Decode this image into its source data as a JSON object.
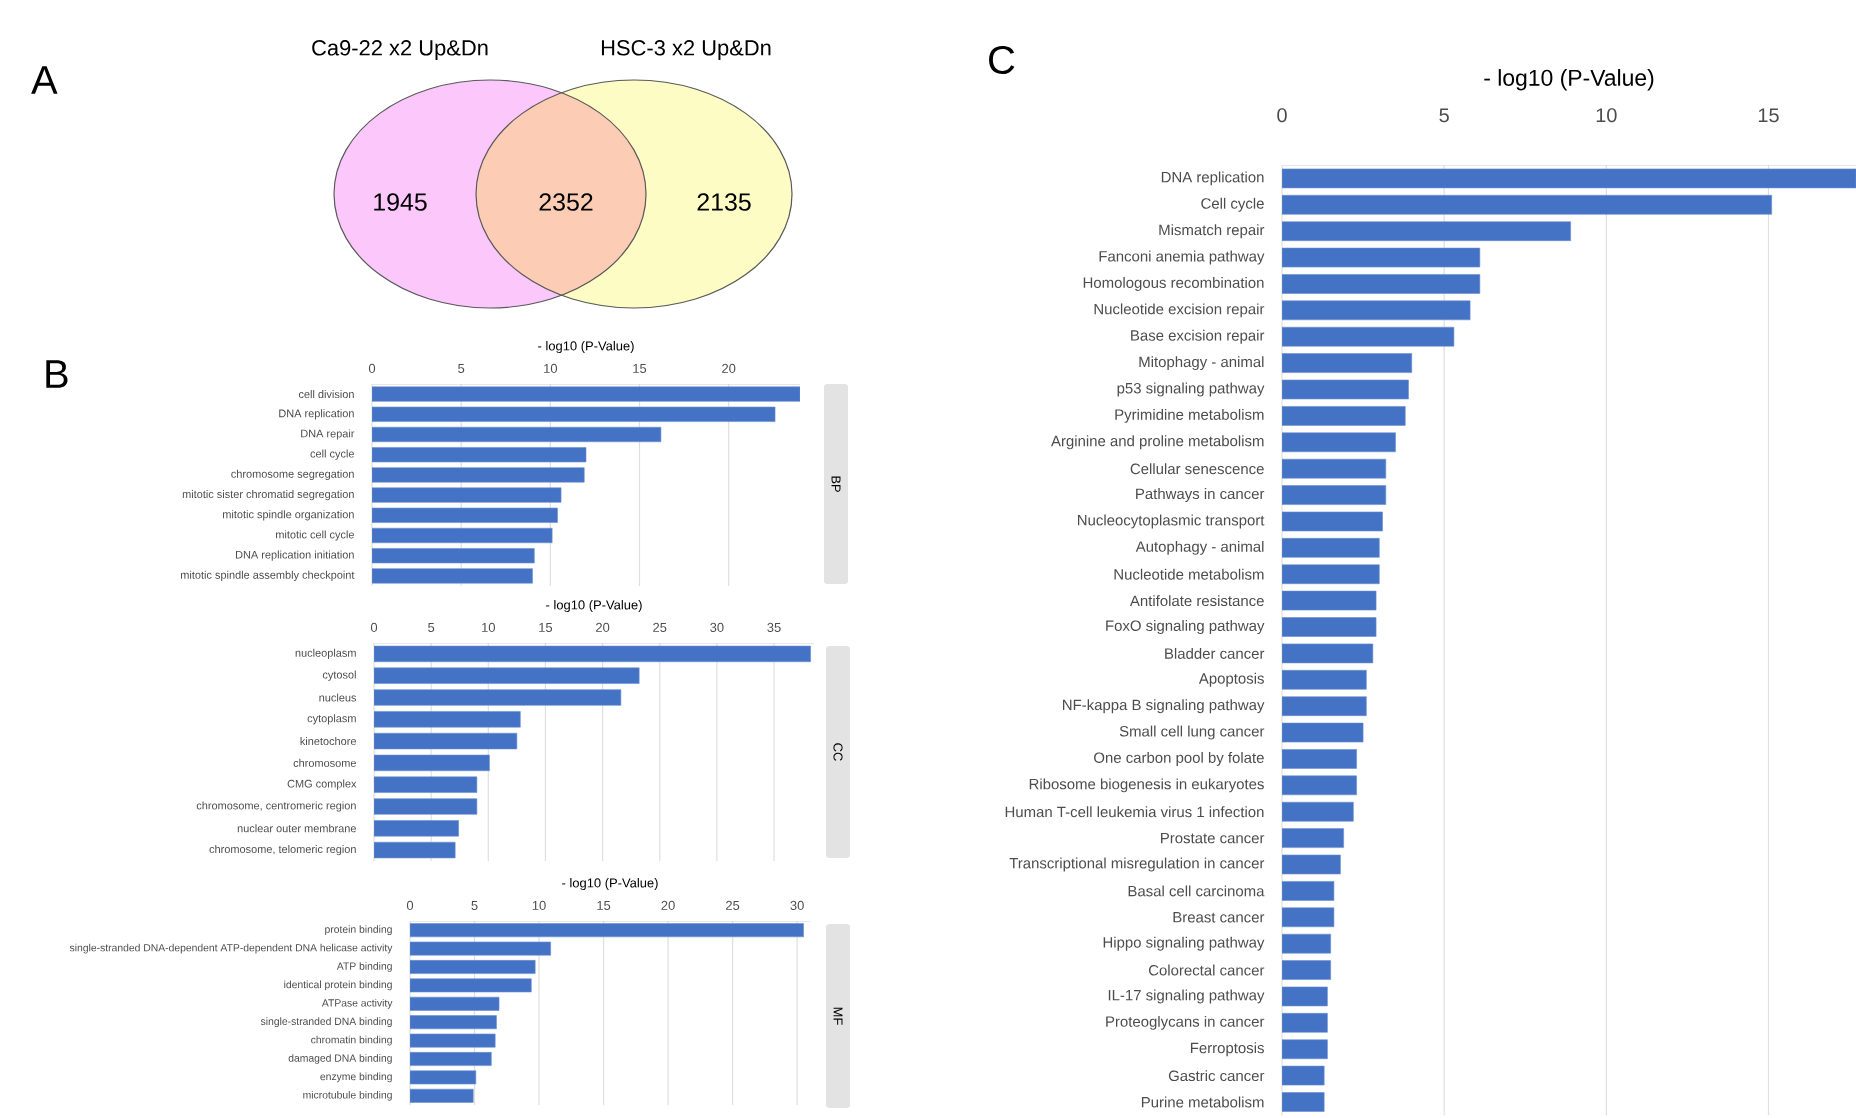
{
  "chart_data": [
    {
      "type": "other",
      "title": "A",
      "annotations": [
        "Ca9-22 x2 Up&Dn",
        "HSC-3 x2 Up&Dn"
      ],
      "categories": [
        null,
        null,
        null
      ],
      "values": [
        1945,
        2352,
        2135
      ],
      "colors": [
        "#fcc8fc",
        "#fcccb4",
        "#fcfcc4"
      ],
      "data_labels": true
    },
    {
      "type": "bar",
      "orientation": "horizontal",
      "title": "B",
      "xlabel": "- log10 (P-Value)",
      "annotations": [
        "BP"
      ],
      "categories": [
        "cell division",
        "DNA replication",
        "DNA repair",
        "cell cycle",
        "chromosome segregation",
        "mitotic sister chromatid segregation",
        "mitotic spindle organization",
        "mitotic cell cycle",
        "DNA replication initiation",
        "mitotic spindle assembly checkpoint"
      ],
      "values": [
        24.0,
        22.6,
        16.2,
        12.0,
        11.9,
        10.6,
        10.4,
        10.1,
        9.1,
        9.0
      ],
      "color": "#4472c4",
      "xlim": [
        0,
        24
      ],
      "xticks": [
        0,
        5,
        10,
        15,
        20
      ],
      "grid": "x"
    },
    {
      "type": "bar",
      "orientation": "horizontal",
      "xlabel": "- log10 (P-Value)",
      "annotations": [
        "CC"
      ],
      "categories": [
        "nucleoplasm",
        "cytosol",
        "nucleus",
        "cytoplasm",
        "kinetochore",
        "chromosome",
        "CMG complex",
        "chromosome, centromeric region",
        "nuclear outer membrane",
        "chromosome, telomeric region"
      ],
      "values": [
        38.2,
        23.2,
        21.6,
        12.8,
        12.5,
        10.1,
        9.0,
        9.0,
        7.4,
        7.1
      ],
      "color": "#4472c4",
      "xlim": [
        0,
        38.5
      ],
      "xticks": [
        0,
        5,
        10,
        15,
        20,
        25,
        30,
        35
      ],
      "grid": "x"
    },
    {
      "type": "bar",
      "orientation": "horizontal",
      "xlabel": "- log10 (P-Value)",
      "annotations": [
        "MF"
      ],
      "categories": [
        "protein binding",
        "single-stranded DNA-dependent ATP-dependent DNA helicase activity",
        "ATP binding",
        "identical protein binding",
        "ATPase activity",
        "single-stranded DNA binding",
        "chromatin binding",
        "damaged DNA binding",
        "enzyme binding",
        "microtubule binding"
      ],
      "values": [
        30.5,
        10.9,
        9.7,
        9.4,
        6.9,
        6.7,
        6.6,
        6.3,
        5.1,
        4.9
      ],
      "color": "#4472c4",
      "xlim": [
        0,
        31
      ],
      "xticks": [
        0,
        5,
        10,
        15,
        20,
        25,
        30
      ],
      "grid": "x"
    },
    {
      "type": "bar",
      "orientation": "horizontal",
      "title": "C",
      "xlabel": "- log10 (P-Value)",
      "categories": [
        "DNA replication",
        "Cell cycle",
        "Mismatch repair",
        "Fanconi anemia pathway",
        "Homologous recombination",
        "Nucleotide excision repair",
        "Base excision repair",
        "Mitophagy - animal",
        "p53 signaling pathway",
        "Pyrimidine metabolism",
        "Arginine and proline metabolism",
        "Cellular senescence",
        "Pathways in cancer",
        "Nucleocytoplasmic transport",
        "Autophagy - animal",
        "Nucleotide metabolism",
        "Antifolate resistance",
        "FoxO signaling pathway",
        "Bladder cancer",
        "Apoptosis",
        "NF-kappa B signaling pathway",
        "Small cell lung cancer",
        "One carbon pool by folate",
        "Ribosome biogenesis in eukaryotes",
        "Human T-cell leukemia virus 1 infection",
        "Prostate cancer",
        "Transcriptional misregulation in cancer",
        "Basal cell carcinoma",
        "Breast cancer",
        "Hippo signaling pathway",
        "Colorectal cancer",
        "IL-17 signaling pathway",
        "Proteoglycans in cancer",
        "Ferroptosis",
        "Gastric cancer",
        "Purine metabolism"
      ],
      "values": [
        17.7,
        15.1,
        8.9,
        6.1,
        6.1,
        5.8,
        5.3,
        4.0,
        3.9,
        3.8,
        3.5,
        3.2,
        3.2,
        3.1,
        3.0,
        3.0,
        2.9,
        2.9,
        2.8,
        2.6,
        2.6,
        2.5,
        2.3,
        2.3,
        2.2,
        1.9,
        1.8,
        1.6,
        1.6,
        1.5,
        1.5,
        1.4,
        1.4,
        1.4,
        1.3,
        1.3
      ],
      "color": "#4472c4",
      "xlim": [
        0,
        17.7
      ],
      "xticks": [
        0,
        5,
        10,
        15
      ],
      "grid": "x"
    }
  ]
}
